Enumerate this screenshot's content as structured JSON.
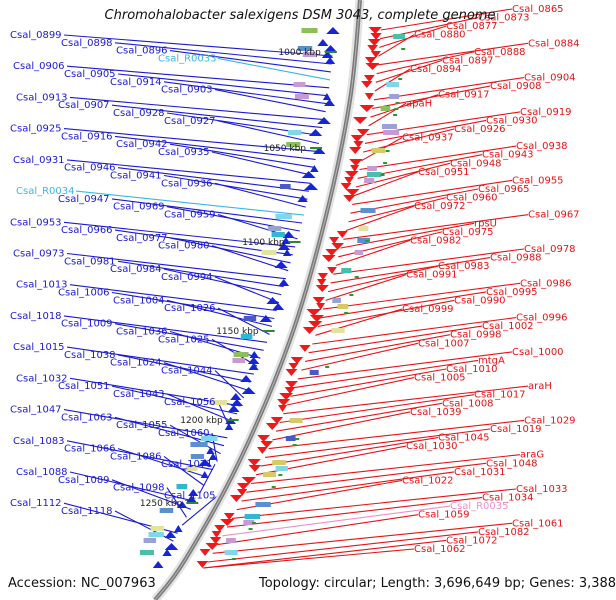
{
  "header": {
    "title": "Chromohalobacter salexigens DSM 3043, complete genome",
    "accession": "Accession: NC_007963",
    "stats": "Topology: circular; Length: 3,696,649 bp; Genes: 3,388"
  },
  "colors": {
    "left_labels": "#1a1ad0",
    "right_labels": "#e41414",
    "rna_left": "#38b8e6",
    "rna_right": "#ee90c8",
    "backbone": "#7a7a7a",
    "kbp_text": "#222222",
    "kbp_tick": "#2a8a2a"
  },
  "kbp_marks": [
    "1000 kbp",
    "1050 kbp",
    "1100 kbp",
    "1150 kbp",
    "1200 kbp",
    "1250 kbp"
  ],
  "left_labels": [
    "Csal_0899",
    "Csal_0898",
    "Csal_0896",
    "Csal_R0033",
    "Csal_0906",
    "Csal_0905",
    "Csal_0914",
    "Csal_0903",
    "Csal_0913",
    "Csal_0907",
    "Csal_0928",
    "Csal_0927",
    "Csal_0925",
    "Csal_0916",
    "Csal_0942",
    "Csal_0935",
    "Csal_0931",
    "Csal_0946",
    "Csal_0941",
    "Csal_0936",
    "Csal_R0034",
    "Csal_0947",
    "Csal_0969",
    "Csal_0959",
    "Csal_0953",
    "Csal_0966",
    "Csal_0977",
    "Csal_0980",
    "Csal_0973",
    "Csal_0981",
    "Csal_0984",
    "Csal_0994",
    "Csal_1013",
    "Csal_1006",
    "Csal_1004",
    "Csal_1026",
    "Csal_1018",
    "Csal_1009",
    "Csal_1036",
    "Csal_1025",
    "Csal_1015",
    "Csal_1038",
    "Csal_1024",
    "Csal_1044",
    "Csal_1032",
    "Csal_1051",
    "Csal_1043",
    "Csal_1056",
    "Csal_1047",
    "Csal_1063",
    "Csal_1055",
    "Csal_1060",
    "Csal_1083",
    "Csal_1066",
    "Csal_1086",
    "Csal_1071",
    "Csal_1088",
    "Csal_1089",
    "Csal_1098",
    "Csal_1105",
    "Csal_1112",
    "Csal_1118"
  ],
  "right_labels": [
    "Csal_0865",
    "Csal_0873",
    "Csal_0877",
    "Csal_0880",
    "Csal_0884",
    "Csal_0888",
    "Csal_0897",
    "Csal_0894",
    "Csal_0904",
    "Csal_0908",
    "Csal_0917",
    "apaH",
    "Csal_0919",
    "Csal_0930",
    "Csal_0926",
    "Csal_0937",
    "Csal_0938",
    "Csal_0943",
    "Csal_0948",
    "Csal_0951",
    "Csal_0955",
    "Csal_0965",
    "Csal_0960",
    "Csal_0972",
    "Csal_0967",
    "rpsU",
    "Csal_0975",
    "Csal_0982",
    "Csal_0978",
    "Csal_0988",
    "Csal_0983",
    "Csal_0991",
    "Csal_0986",
    "Csal_0995",
    "Csal_0990",
    "Csal_0999",
    "Csal_0996",
    "Csal_1002",
    "Csal_0998",
    "Csal_1007",
    "Csal_1000",
    "mtgA",
    "Csal_1010",
    "Csal_1005",
    "araH",
    "Csal_1017",
    "Csal_1008",
    "Csal_1039",
    "Csal_1029",
    "Csal_1019",
    "Csal_1045",
    "Csal_1030",
    "araG",
    "Csal_1048",
    "Csal_1031",
    "Csal_1022",
    "Csal_1033",
    "Csal_1034",
    "Csal_R0035",
    "Csal_1059",
    "Csal_1061",
    "Csal_1082",
    "Csal_1072",
    "Csal_1062"
  ]
}
